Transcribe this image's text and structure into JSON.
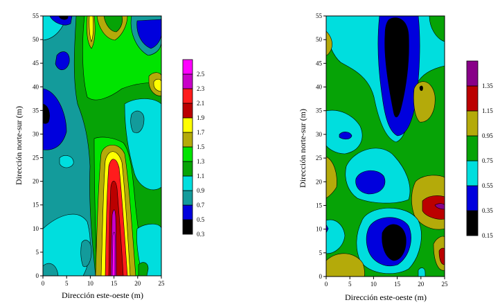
{
  "chart_data": [
    {
      "type": "heatmap",
      "subtype": "filled-contour",
      "xlabel": "Dirección este-oeste (m)",
      "ylabel": "Dirección norte-sur (m)",
      "xlim": [
        0,
        25
      ],
      "ylim": [
        0,
        55
      ],
      "xticks": [
        0,
        5,
        10,
        15,
        20,
        25
      ],
      "yticks": [
        0,
        5,
        10,
        15,
        20,
        25,
        30,
        35,
        40,
        45,
        50,
        55
      ],
      "colorbar": {
        "levels": [
          0.3,
          0.5,
          0.7,
          0.9,
          1.1,
          1.3,
          1.5,
          1.7,
          1.9,
          2.1,
          2.3,
          2.5
        ],
        "labels": [
          "0.3",
          "0.5",
          "0.7",
          "0.9",
          "1.1",
          "1.3",
          "1.5",
          "1.7",
          "1.9",
          "2.1",
          "2.3",
          "2.5"
        ],
        "colors": [
          "#000000",
          "#0000dd",
          "#139b9b",
          "#00dede",
          "#06a306",
          "#00e400",
          "#b4aa0a",
          "#ffff00",
          "#bb0000",
          "#ff1c1c",
          "#c800c8",
          "#ff00ff"
        ]
      },
      "value_range": [
        0.3,
        2.5
      ],
      "features": [
        {
          "label": "máximo",
          "x": 15,
          "y": 7,
          "value": 2.4
        },
        {
          "label": "máximo",
          "x": 15,
          "y": 14,
          "value": 2.0
        },
        {
          "label": "mínimo",
          "x": 0.8,
          "y": 34,
          "value": 0.35
        },
        {
          "label": "mínimo",
          "x": 4.5,
          "y": 54,
          "value": 0.4
        },
        {
          "label": "mínimo",
          "x": 22.5,
          "y": 50,
          "value": 0.5
        }
      ]
    },
    {
      "type": "heatmap",
      "subtype": "filled-contour",
      "xlabel": "Dirección este-oeste (m)",
      "ylabel": "Dirección norte-sur (m)",
      "xlim": [
        0,
        25
      ],
      "ylim": [
        0,
        55
      ],
      "xticks": [
        0,
        5,
        10,
        15,
        20,
        25
      ],
      "yticks": [
        0,
        5,
        10,
        15,
        20,
        25,
        30,
        35,
        40,
        45,
        50,
        55
      ],
      "colorbar": {
        "levels": [
          0.15,
          0.35,
          0.55,
          0.75,
          0.95,
          1.15,
          1.35
        ],
        "labels": [
          "0.15",
          "0.35",
          "0.55",
          "0.75",
          "0.95",
          "1.15",
          "1.35"
        ],
        "colors": [
          "#000000",
          "#0000dd",
          "#00dede",
          "#06a306",
          "#b4aa0a",
          "#bb0000",
          "#880088"
        ]
      },
      "value_range": [
        0.15,
        1.45
      ],
      "features": [
        {
          "label": "mínimo",
          "x": 15,
          "y": 47,
          "value": 0.1
        },
        {
          "label": "mínimo",
          "x": 14,
          "y": 8,
          "value": 0.15
        },
        {
          "label": "mínimo",
          "x": 9.5,
          "y": 20,
          "value": 0.4
        },
        {
          "label": "máximo",
          "x": 23,
          "y": 15,
          "value": 1.3
        }
      ]
    }
  ]
}
